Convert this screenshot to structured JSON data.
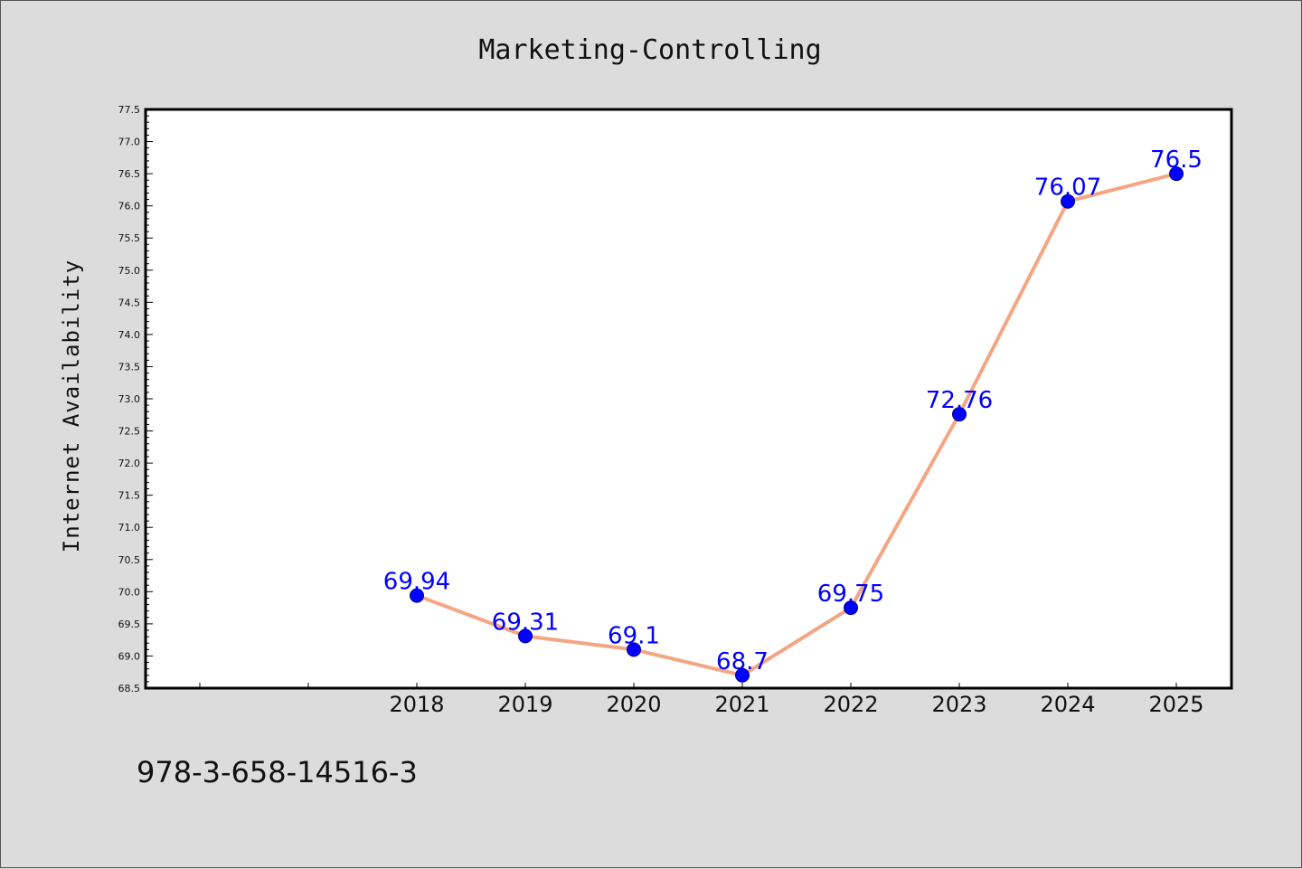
{
  "chart_data": {
    "type": "line",
    "title": "Marketing-Controlling",
    "xlabel": "",
    "ylabel": "Internet Availability",
    "categories": [
      "2018",
      "2019",
      "2020",
      "2021",
      "2022",
      "2023",
      "2024",
      "2025"
    ],
    "series": [
      {
        "values": [
          69.94,
          69.31,
          69.1,
          68.7,
          69.75,
          72.76,
          76.07,
          76.5
        ],
        "labels": [
          "69.94",
          "69.31",
          "69.1",
          "68.7",
          "69.75",
          "72.76",
          "76.07",
          "76.5"
        ]
      }
    ],
    "ylim": [
      68.5,
      77.5
    ],
    "yticks": [
      "68.5",
      "69.0",
      "69.5",
      "70.0",
      "70.5",
      "71.0",
      "71.5",
      "72.0",
      "72.5",
      "73.0",
      "73.5",
      "74.0",
      "74.5",
      "75.0",
      "75.5",
      "76.0",
      "76.5",
      "77.0",
      "77.5"
    ],
    "grid": false,
    "line_color": "#f4a582",
    "marker_color": "#0000ff",
    "label_color": "#0000ff"
  },
  "footer": {
    "isbn": "978-3-658-14516-3"
  }
}
